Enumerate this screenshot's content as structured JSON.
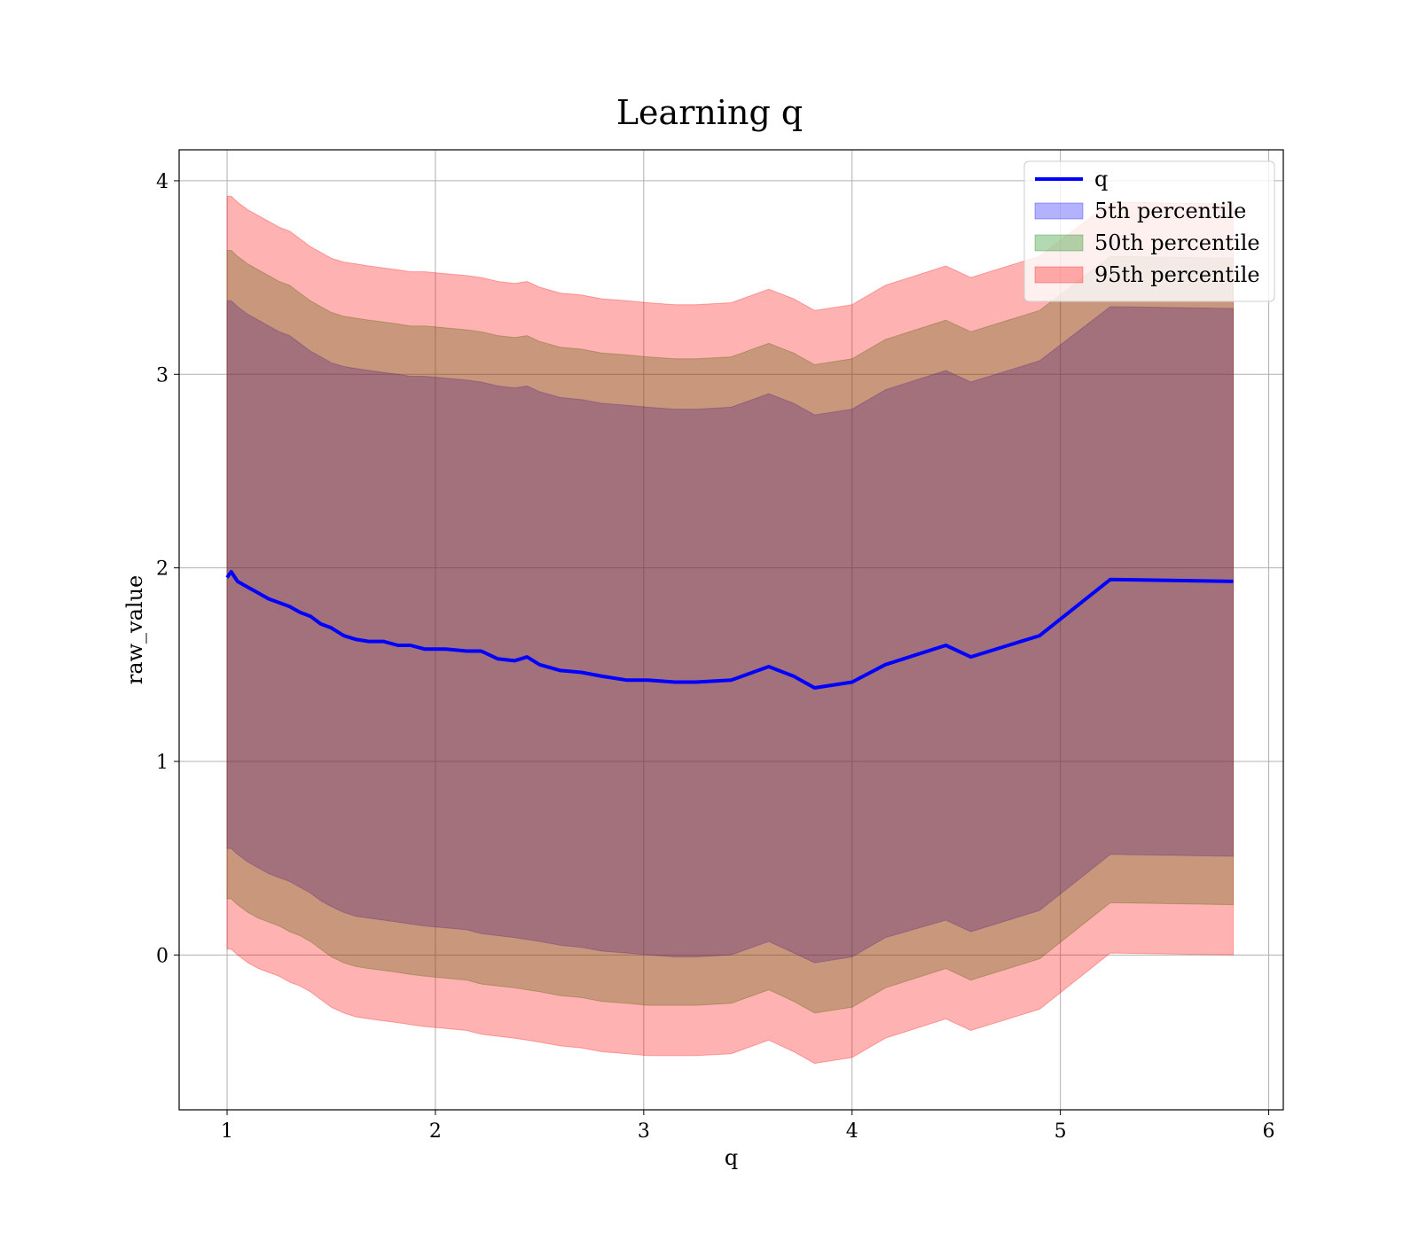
{
  "chart_data": {
    "type": "area",
    "title": "Learning q",
    "xlabel": "q",
    "ylabel": "raw_value",
    "xlim": [
      0.77,
      6.07
    ],
    "ylim": [
      -0.8,
      4.16
    ],
    "x_ticks": [
      1,
      2,
      3,
      4,
      5,
      6
    ],
    "y_ticks": [
      0,
      1,
      2,
      3,
      4
    ],
    "x_tick_labels": [
      "1",
      "2",
      "3",
      "4",
      "5",
      "6"
    ],
    "y_tick_labels": [
      "0",
      "1",
      "2",
      "3",
      "4"
    ],
    "grid": true,
    "legend_position": "top-right",
    "x": [
      1.0,
      1.02,
      1.05,
      1.1,
      1.15,
      1.2,
      1.25,
      1.3,
      1.35,
      1.4,
      1.45,
      1.5,
      1.56,
      1.62,
      1.68,
      1.75,
      1.82,
      1.88,
      1.95,
      2.05,
      2.15,
      2.22,
      2.3,
      2.38,
      2.44,
      2.5,
      2.6,
      2.7,
      2.8,
      2.92,
      3.02,
      3.15,
      3.25,
      3.42,
      3.6,
      3.72,
      3.82,
      4.0,
      4.16,
      4.45,
      4.57,
      4.9,
      5.24,
      5.83
    ],
    "series": [
      {
        "name": "q",
        "color": "#0000ff",
        "values": [
          1.95,
          1.98,
          1.93,
          1.9,
          1.87,
          1.84,
          1.82,
          1.8,
          1.77,
          1.75,
          1.71,
          1.69,
          1.65,
          1.63,
          1.62,
          1.62,
          1.6,
          1.6,
          1.58,
          1.58,
          1.57,
          1.57,
          1.53,
          1.52,
          1.54,
          1.5,
          1.47,
          1.46,
          1.44,
          1.42,
          1.42,
          1.41,
          1.41,
          1.42,
          1.49,
          1.44,
          1.38,
          1.41,
          1.5,
          1.6,
          1.54,
          1.65,
          1.94,
          1.93
        ]
      },
      {
        "name": "5th percentile",
        "color": "#0000ff",
        "lower": [
          0.55,
          0.55,
          0.52,
          0.48,
          0.45,
          0.42,
          0.4,
          0.38,
          0.35,
          0.32,
          0.28,
          0.25,
          0.22,
          0.2,
          0.19,
          0.18,
          0.17,
          0.16,
          0.15,
          0.14,
          0.13,
          0.11,
          0.1,
          0.09,
          0.08,
          0.07,
          0.05,
          0.04,
          0.02,
          0.01,
          0.0,
          -0.01,
          -0.01,
          0.0,
          0.07,
          0.01,
          -0.04,
          -0.01,
          0.09,
          0.18,
          0.12,
          0.23,
          0.52,
          0.51
        ],
        "upper": [
          3.38,
          3.38,
          3.35,
          3.31,
          3.28,
          3.25,
          3.22,
          3.2,
          3.16,
          3.12,
          3.09,
          3.06,
          3.04,
          3.03,
          3.02,
          3.01,
          3.0,
          2.99,
          2.99,
          2.98,
          2.97,
          2.96,
          2.94,
          2.93,
          2.94,
          2.91,
          2.88,
          2.87,
          2.85,
          2.84,
          2.83,
          2.82,
          2.82,
          2.83,
          2.9,
          2.85,
          2.79,
          2.82,
          2.92,
          3.02,
          2.96,
          3.07,
          3.35,
          3.34
        ]
      },
      {
        "name": "50th percentile",
        "color": "#008000",
        "lower": [
          0.29,
          0.29,
          0.26,
          0.22,
          0.19,
          0.17,
          0.15,
          0.12,
          0.1,
          0.07,
          0.03,
          -0.01,
          -0.04,
          -0.06,
          -0.07,
          -0.08,
          -0.09,
          -0.1,
          -0.11,
          -0.12,
          -0.13,
          -0.15,
          -0.16,
          -0.17,
          -0.18,
          -0.19,
          -0.21,
          -0.22,
          -0.24,
          -0.25,
          -0.26,
          -0.26,
          -0.26,
          -0.25,
          -0.18,
          -0.24,
          -0.3,
          -0.27,
          -0.17,
          -0.07,
          -0.13,
          -0.02,
          0.27,
          0.26
        ],
        "upper": [
          3.64,
          3.64,
          3.61,
          3.57,
          3.54,
          3.51,
          3.48,
          3.46,
          3.42,
          3.38,
          3.35,
          3.32,
          3.3,
          3.29,
          3.28,
          3.27,
          3.26,
          3.25,
          3.25,
          3.24,
          3.23,
          3.22,
          3.2,
          3.19,
          3.2,
          3.17,
          3.14,
          3.13,
          3.11,
          3.1,
          3.09,
          3.08,
          3.08,
          3.09,
          3.16,
          3.11,
          3.05,
          3.08,
          3.18,
          3.28,
          3.22,
          3.33,
          3.61,
          3.6
        ]
      },
      {
        "name": "95th percentile",
        "color": "#ff0000",
        "lower": [
          0.03,
          0.03,
          0.0,
          -0.04,
          -0.07,
          -0.09,
          -0.11,
          -0.14,
          -0.16,
          -0.19,
          -0.23,
          -0.27,
          -0.3,
          -0.32,
          -0.33,
          -0.34,
          -0.35,
          -0.36,
          -0.37,
          -0.38,
          -0.39,
          -0.41,
          -0.42,
          -0.43,
          -0.44,
          -0.45,
          -0.47,
          -0.48,
          -0.5,
          -0.51,
          -0.52,
          -0.52,
          -0.52,
          -0.51,
          -0.44,
          -0.5,
          -0.56,
          -0.53,
          -0.43,
          -0.33,
          -0.39,
          -0.28,
          0.01,
          0.0
        ],
        "upper": [
          3.92,
          3.92,
          3.89,
          3.85,
          3.82,
          3.79,
          3.76,
          3.74,
          3.7,
          3.66,
          3.63,
          3.6,
          3.58,
          3.57,
          3.56,
          3.55,
          3.54,
          3.53,
          3.53,
          3.52,
          3.51,
          3.5,
          3.48,
          3.47,
          3.48,
          3.45,
          3.42,
          3.41,
          3.39,
          3.38,
          3.37,
          3.36,
          3.36,
          3.37,
          3.44,
          3.39,
          3.33,
          3.36,
          3.46,
          3.56,
          3.5,
          3.61,
          3.89,
          3.88
        ]
      }
    ]
  }
}
